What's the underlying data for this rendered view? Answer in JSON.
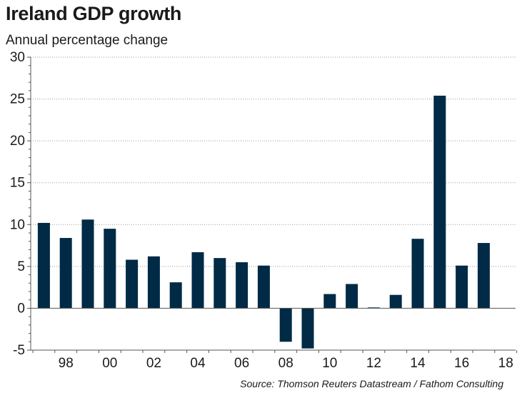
{
  "title": "Ireland GDP growth",
  "subtitle": "Annual percentage change",
  "source": "Source: Thomson Reuters Datastream / Fathom Consulting",
  "colors": {
    "bar": "#002a45",
    "grid": "#9a9a9a",
    "axis": "#555555"
  },
  "chart_data": {
    "type": "bar",
    "title": "Ireland GDP growth",
    "subtitle": "Annual percentage change",
    "xlabel": "",
    "ylabel": "",
    "ylim": [
      -5,
      30
    ],
    "yticks": [
      -5,
      0,
      5,
      10,
      15,
      20,
      25,
      30
    ],
    "xtick_labels": [
      "98",
      "00",
      "02",
      "04",
      "06",
      "08",
      "10",
      "12",
      "14",
      "16",
      "18"
    ],
    "xtick_years": [
      1998,
      2000,
      2002,
      2004,
      2006,
      2008,
      2010,
      2012,
      2014,
      2016,
      2018
    ],
    "grid": "horizontal dotted",
    "legend": "none",
    "categories": [
      1997,
      1998,
      1999,
      2000,
      2001,
      2002,
      2003,
      2004,
      2005,
      2006,
      2007,
      2008,
      2009,
      2010,
      2011,
      2012,
      2013,
      2014,
      2015,
      2016,
      2017
    ],
    "values": [
      10.2,
      8.4,
      10.6,
      9.5,
      5.8,
      6.2,
      3.1,
      6.7,
      6.0,
      5.5,
      5.1,
      -4.0,
      -4.8,
      1.7,
      2.9,
      0.1,
      1.6,
      8.3,
      25.4,
      5.1,
      7.8
    ]
  }
}
